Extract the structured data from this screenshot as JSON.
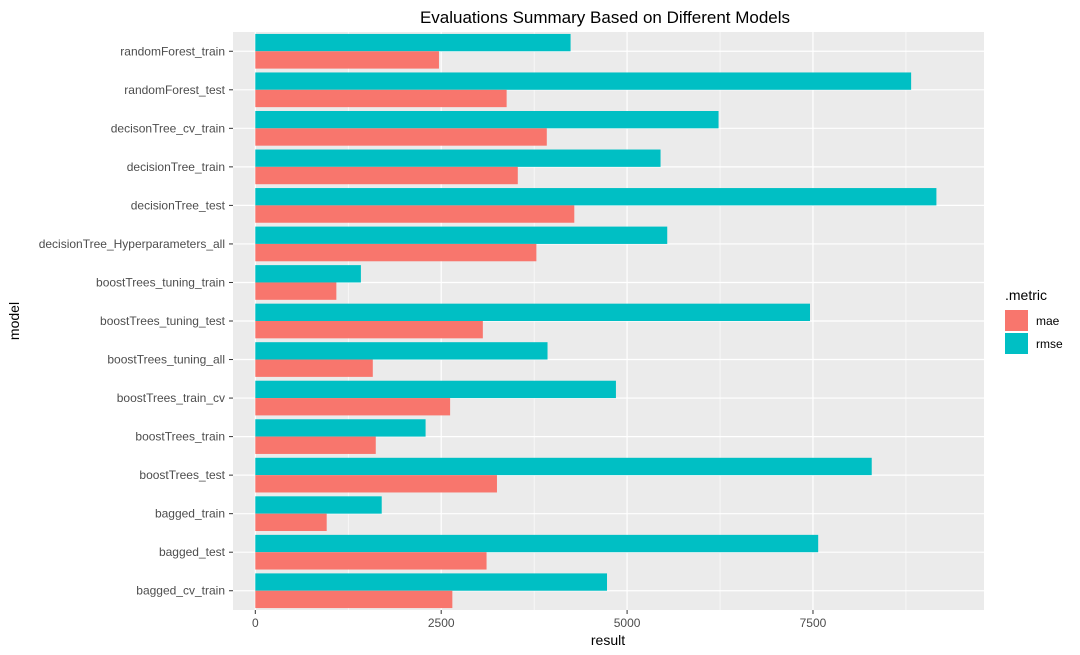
{
  "chart_data": {
    "type": "bar",
    "orientation": "horizontal",
    "title": "Evaluations Summary Based on Different Models",
    "xlabel": "result",
    "ylabel": "model",
    "xlim": [
      -300,
      9800
    ],
    "x_ticks": [
      0,
      2500,
      5000,
      7500
    ],
    "x_tick_labels": [
      "0",
      "2500",
      "5000",
      "7500"
    ],
    "grid": true,
    "legend_position": "right",
    "legend_title": ".metric",
    "categories": [
      "randomForest_train",
      "randomForest_test",
      "decisonTree_cv_train",
      "decisionTree_train",
      "decisionTree_test",
      "decisionTree_Hyperparameters_all",
      "boostTrees_tuning_train",
      "boostTrees_tuning_test",
      "boostTrees_tuning_all",
      "boostTrees_train_cv",
      "boostTrees_train",
      "boostTrees_test",
      "bagged_train",
      "bagged_test",
      "bagged_cv_train"
    ],
    "series": [
      {
        "name": "mae",
        "color": "#F8766D",
        "values": [
          2470,
          3380,
          3920,
          3530,
          4290,
          3780,
          1090,
          3060,
          1580,
          2620,
          1620,
          3250,
          960,
          3110,
          2650
        ]
      },
      {
        "name": "rmse",
        "color": "#00BFC4",
        "values": [
          4240,
          8820,
          6230,
          5450,
          9160,
          5540,
          1420,
          7460,
          3930,
          4850,
          2290,
          8290,
          1700,
          7570,
          4730
        ]
      }
    ]
  }
}
